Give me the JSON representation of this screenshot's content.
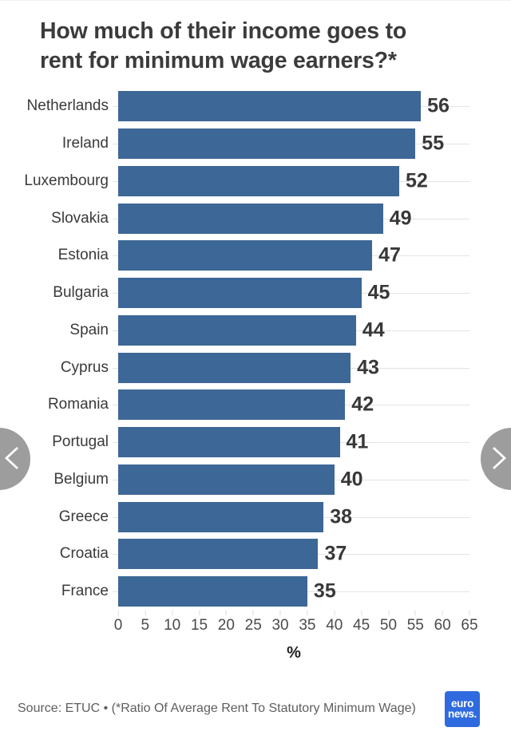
{
  "chart": {
    "title": "How much of their income goes to\nrent for minimum wage earners?*"
  },
  "chart_data": {
    "type": "bar",
    "orientation": "horizontal",
    "title": "How much of their income goes to rent for minimum wage earners?*",
    "categories": [
      "Netherlands",
      "Ireland",
      "Luxembourg",
      "Slovakia",
      "Estonia",
      "Bulgaria",
      "Spain",
      "Cyprus",
      "Romania",
      "Portugal",
      "Belgium",
      "Greece",
      "Croatia",
      "France"
    ],
    "values": [
      56,
      55,
      52,
      49,
      47,
      45,
      44,
      43,
      42,
      41,
      40,
      38,
      37,
      35
    ],
    "xlabel": "%",
    "xlim": [
      0,
      65
    ],
    "xticks": [
      0,
      5,
      10,
      15,
      20,
      25,
      30,
      35,
      40,
      45,
      50,
      55,
      60,
      65
    ],
    "value_labels": true,
    "grid": "faint horizontal line per category row",
    "bar_color": "#3d6796",
    "grid_color": "#e3e3e3",
    "label_color": "#3a3a3a"
  },
  "footer": {
    "source": "Source: ETUC • (*Ratio Of Average Rent To Statutory Minimum Wage)",
    "logo_line1": "euro",
    "logo_line2": "news.",
    "logo_color": "#2f6bdf"
  },
  "nav": {
    "prev_icon": "chevron-left",
    "next_icon": "chevron-right",
    "circle_color": "#9d9d9d"
  }
}
